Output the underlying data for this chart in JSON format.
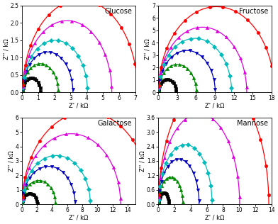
{
  "subplot_params": [
    {
      "title": "Glucose",
      "xlim": [
        0,
        7
      ],
      "ylim": [
        0,
        2.5
      ],
      "xticks": [
        0,
        1,
        2,
        3,
        4,
        5,
        6,
        7
      ],
      "yticks": [
        0.0,
        0.5,
        1.0,
        1.5,
        2.0,
        2.5
      ],
      "semicircles": [
        {
          "R0": 0.05,
          "R": 0.55,
          "alpha": 0.75
        },
        {
          "R0": 0.05,
          "R": 1.1,
          "alpha": 0.75
        },
        {
          "R0": 0.05,
          "R": 1.55,
          "alpha": 0.75
        },
        {
          "R0": 0.05,
          "R": 2.0,
          "alpha": 0.75
        },
        {
          "R0": 0.05,
          "R": 2.75,
          "alpha": 0.75
        },
        {
          "R0": 0.05,
          "R": 3.55,
          "alpha": 0.75
        }
      ]
    },
    {
      "title": "Fructose",
      "xlim": [
        0,
        18
      ],
      "ylim": [
        0,
        7.0
      ],
      "xticks": [
        0,
        3,
        6,
        9,
        12,
        15,
        18
      ],
      "yticks": [
        0.0,
        1.0,
        2.0,
        3.0,
        4.0,
        5.0,
        6.0,
        7.0
      ],
      "semicircles": [
        {
          "R0": 0.05,
          "R": 1.4,
          "alpha": 0.75
        },
        {
          "R0": 0.05,
          "R": 3.0,
          "alpha": 0.75
        },
        {
          "R0": 0.05,
          "R": 4.5,
          "alpha": 0.75
        },
        {
          "R0": 0.05,
          "R": 5.8,
          "alpha": 0.75
        },
        {
          "R0": 0.05,
          "R": 7.0,
          "alpha": 0.75
        },
        {
          "R0": 0.05,
          "R": 9.2,
          "alpha": 0.75
        }
      ]
    },
    {
      "title": "Galactose",
      "xlim": [
        0,
        15
      ],
      "ylim": [
        0,
        6.0
      ],
      "xticks": [
        0,
        2,
        4,
        6,
        8,
        10,
        12,
        14
      ],
      "yticks": [
        0.0,
        1.0,
        2.0,
        3.0,
        4.0,
        5.0,
        6.0
      ],
      "semicircles": [
        {
          "R0": 0.05,
          "R": 1.0,
          "alpha": 0.75
        },
        {
          "R0": 0.05,
          "R": 2.2,
          "alpha": 0.75
        },
        {
          "R0": 0.05,
          "R": 3.5,
          "alpha": 0.75
        },
        {
          "R0": 0.05,
          "R": 4.5,
          "alpha": 0.75
        },
        {
          "R0": 0.05,
          "R": 6.5,
          "alpha": 0.75
        },
        {
          "R0": 0.05,
          "R": 8.5,
          "alpha": 0.75
        }
      ]
    },
    {
      "title": "Mannose",
      "xlim": [
        0,
        14
      ],
      "ylim": [
        0,
        3.6
      ],
      "xticks": [
        0,
        2,
        4,
        6,
        8,
        10,
        12,
        14
      ],
      "yticks": [
        0.0,
        0.6,
        1.2,
        1.8,
        2.4,
        3.0,
        3.6
      ],
      "semicircles": [
        {
          "R0": 0.05,
          "R": 0.65,
          "alpha": 0.75
        },
        {
          "R0": 0.05,
          "R": 1.5,
          "alpha": 0.75
        },
        {
          "R0": 0.05,
          "R": 2.5,
          "alpha": 0.75
        },
        {
          "R0": 0.05,
          "R": 3.3,
          "alpha": 0.75
        },
        {
          "R0": 0.05,
          "R": 5.0,
          "alpha": 0.75
        },
        {
          "R0": 0.05,
          "R": 6.8,
          "alpha": 0.75
        }
      ]
    }
  ],
  "colors": [
    "#000000",
    "#008800",
    "#0000BB",
    "#00BBBB",
    "#DD00DD",
    "#FF0000"
  ],
  "markers": [
    "s",
    "^",
    "v",
    "D",
    "^",
    "o"
  ],
  "xlabel": "Z' / kΩ",
  "ylabel": "Z'' / kΩ"
}
